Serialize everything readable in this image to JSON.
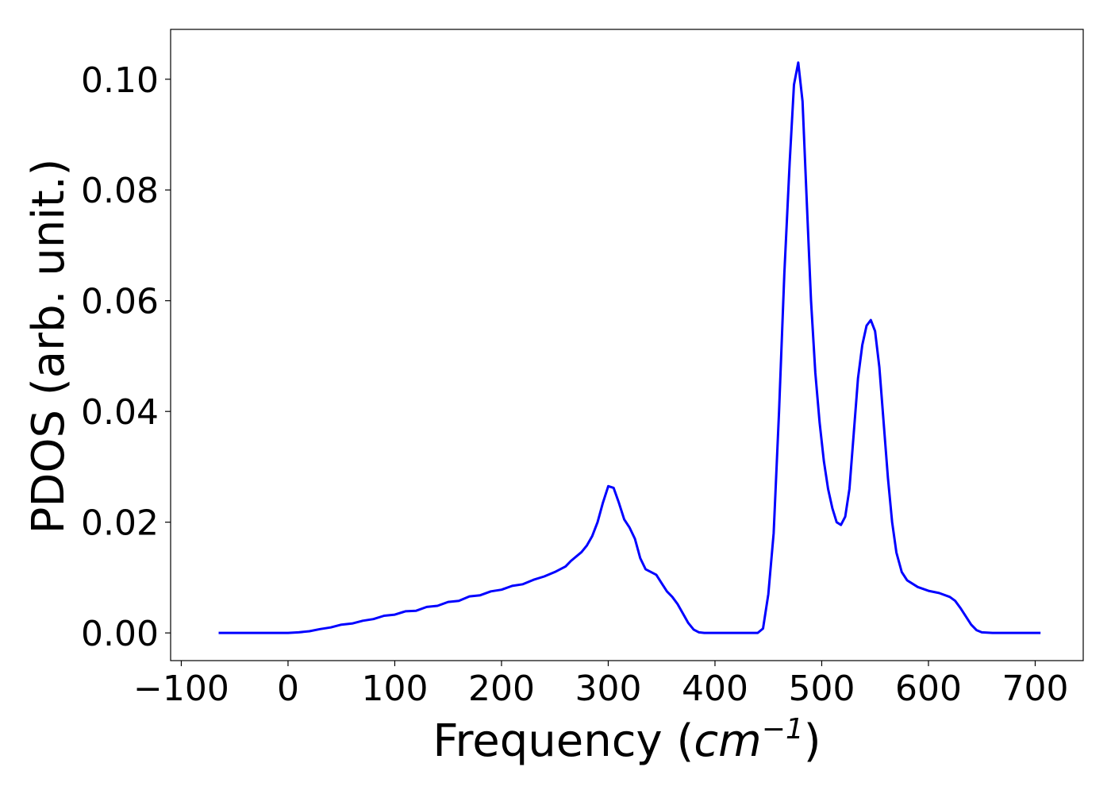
{
  "chart_data": {
    "type": "line",
    "title": "",
    "xlabel": "Frequency",
    "xlabel_unit_prefix": "(",
    "xlabel_unit_base": "cm",
    "xlabel_unit_exp": "−1",
    "xlabel_unit_suffix": ")",
    "ylabel": "PDOS (arb. unit.)",
    "xlim": [
      -110,
      745
    ],
    "ylim": [
      -0.005,
      0.109
    ],
    "xticks": [
      -100,
      0,
      100,
      200,
      300,
      400,
      500,
      600,
      700
    ],
    "xtick_labels": [
      "−100",
      "0",
      "100",
      "200",
      "300",
      "400",
      "500",
      "600",
      "700"
    ],
    "yticks": [
      0.0,
      0.02,
      0.04,
      0.06,
      0.08,
      0.1
    ],
    "ytick_labels": [
      "0.00",
      "0.02",
      "0.04",
      "0.06",
      "0.08",
      "0.10"
    ],
    "grid": false,
    "legend": "none",
    "series": [
      {
        "color": "#0000ff",
        "x": [
          -65,
          -40,
          -20,
          0,
          10,
          20,
          30,
          40,
          50,
          60,
          70,
          80,
          90,
          100,
          110,
          120,
          130,
          140,
          150,
          160,
          170,
          180,
          190,
          200,
          210,
          220,
          230,
          240,
          250,
          260,
          265,
          275,
          280,
          285,
          290,
          295,
          300,
          305,
          310,
          315,
          320,
          325,
          330,
          335,
          340,
          345,
          350,
          355,
          360,
          365,
          370,
          375,
          380,
          385,
          390,
          400,
          420,
          440,
          445,
          450,
          455,
          460,
          465,
          470,
          474,
          478,
          482,
          486,
          490,
          494,
          498,
          502,
          506,
          510,
          514,
          518,
          522,
          526,
          530,
          534,
          538,
          542,
          546,
          550,
          554,
          558,
          562,
          566,
          570,
          575,
          580,
          590,
          600,
          610,
          620,
          625,
          630,
          635,
          640,
          645,
          650,
          660,
          680,
          705
        ],
        "y": [
          0.0,
          0.0,
          0.0,
          0.0,
          0.0001,
          0.0003,
          0.0007,
          0.001,
          0.0015,
          0.0017,
          0.0022,
          0.0025,
          0.0031,
          0.0033,
          0.0039,
          0.004,
          0.0047,
          0.0049,
          0.0056,
          0.0058,
          0.0066,
          0.0068,
          0.0075,
          0.0078,
          0.0085,
          0.0088,
          0.0096,
          0.0102,
          0.011,
          0.012,
          0.013,
          0.0146,
          0.0158,
          0.0175,
          0.02,
          0.0235,
          0.0265,
          0.0262,
          0.0235,
          0.0205,
          0.019,
          0.017,
          0.0135,
          0.0115,
          0.011,
          0.0105,
          0.009,
          0.0075,
          0.0065,
          0.0052,
          0.0035,
          0.0018,
          0.0006,
          0.0001,
          0.0,
          0.0,
          0.0,
          0.0,
          0.0008,
          0.007,
          0.018,
          0.04,
          0.065,
          0.085,
          0.099,
          0.103,
          0.096,
          0.078,
          0.06,
          0.047,
          0.038,
          0.031,
          0.026,
          0.0225,
          0.02,
          0.0195,
          0.021,
          0.026,
          0.036,
          0.046,
          0.052,
          0.0555,
          0.0565,
          0.0545,
          0.048,
          0.038,
          0.028,
          0.02,
          0.0145,
          0.011,
          0.0095,
          0.0083,
          0.0076,
          0.0072,
          0.0065,
          0.0058,
          0.0045,
          0.003,
          0.0015,
          0.0005,
          0.0001,
          0.0,
          0.0,
          0.0
        ]
      }
    ]
  }
}
